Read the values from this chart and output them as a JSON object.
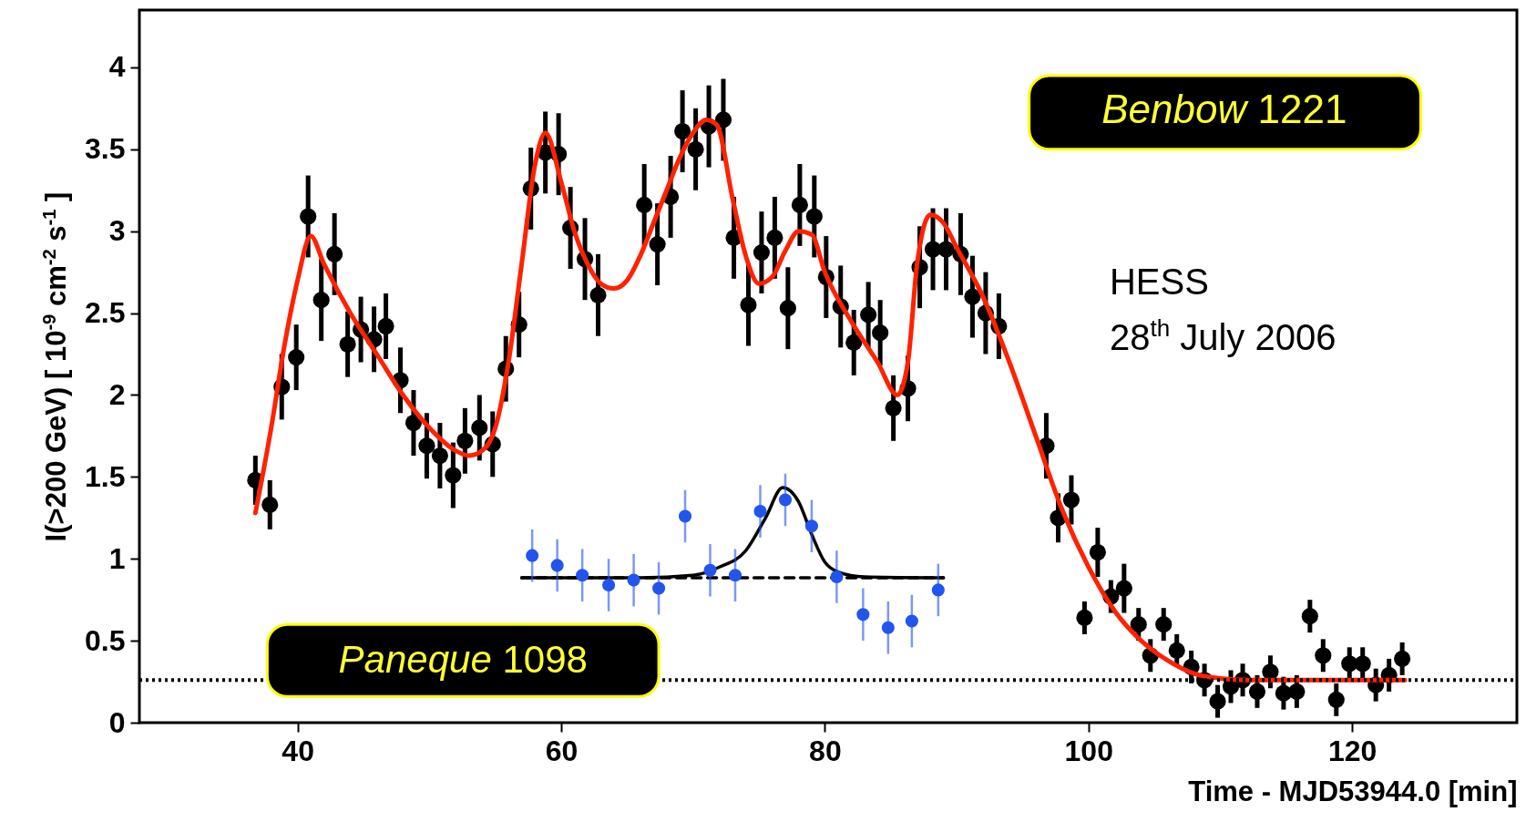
{
  "chart_data": {
    "type": "scatter",
    "xlabel": "Time - MJD53944.0 [min]",
    "ylabel": "I(>200 GeV) [ 10$^{-9}$ cm$^{-2}$ s$^{-1}$ ]",
    "xlim": [
      28,
      132.5
    ],
    "xticks": [
      40,
      60,
      80,
      100,
      120
    ],
    "ylim": [
      0,
      4.35
    ],
    "yticks": [
      0,
      0.5,
      1,
      1.5,
      2,
      2.5,
      3,
      3.5,
      4
    ],
    "grid": false,
    "series": [
      {
        "color": "#000000",
        "marker": "circle",
        "x": [
          36.8,
          37.9,
          38.8,
          39.9,
          40.8,
          41.8,
          42.8,
          43.8,
          44.8,
          45.8,
          46.7,
          47.8,
          48.8,
          49.8,
          50.8,
          51.8,
          52.7,
          53.8,
          54.8,
          55.8,
          56.8,
          57.7,
          58.8,
          59.8,
          60.7,
          61.8,
          62.8,
          66.3,
          67.3,
          68.3,
          69.2,
          70.2,
          71.2,
          72.3,
          73.1,
          74.2,
          75.2,
          76.2,
          77.2,
          78.1,
          79.2,
          80.1,
          81.2,
          82.2,
          83.3,
          84.2,
          85.2,
          86.3,
          87.2,
          88.2,
          89.2,
          90.3,
          91.2,
          92.2,
          93.2,
          96.8,
          97.7,
          98.7,
          99.7,
          100.7,
          101.7,
          102.7,
          103.8,
          104.7,
          105.7,
          106.7,
          107.8,
          108.8,
          109.8,
          110.8,
          111.7,
          112.8,
          113.8,
          114.8,
          115.8,
          116.8,
          117.8,
          118.8,
          119.8,
          120.8,
          121.8,
          122.8,
          123.8
        ],
        "values": [
          1.48,
          1.33,
          2.05,
          2.23,
          3.09,
          2.58,
          2.86,
          2.31,
          2.4,
          2.34,
          2.42,
          2.09,
          1.83,
          1.69,
          1.63,
          1.51,
          1.72,
          1.8,
          1.7,
          2.16,
          2.43,
          3.26,
          3.48,
          3.47,
          3.02,
          2.83,
          2.61,
          3.16,
          2.92,
          3.21,
          3.61,
          3.5,
          3.64,
          3.68,
          2.96,
          2.55,
          2.87,
          2.96,
          2.53,
          3.16,
          3.09,
          2.72,
          2.54,
          2.32,
          2.49,
          2.38,
          1.92,
          2.04,
          2.78,
          2.89,
          2.89,
          2.86,
          2.6,
          2.5,
          2.42,
          1.69,
          1.25,
          1.36,
          0.64,
          1.04,
          0.77,
          0.82,
          0.6,
          0.41,
          0.6,
          0.44,
          0.34,
          0.26,
          0.13,
          0.22,
          0.26,
          0.19,
          0.31,
          0.18,
          0.19,
          0.65,
          0.41,
          0.14,
          0.36,
          0.36,
          0.23,
          0.29,
          0.39
        ],
        "errors": [
          0.15,
          0.15,
          0.2,
          0.2,
          0.25,
          0.25,
          0.25,
          0.2,
          0.2,
          0.2,
          0.2,
          0.2,
          0.2,
          0.2,
          0.2,
          0.2,
          0.2,
          0.2,
          0.2,
          0.2,
          0.2,
          0.25,
          0.25,
          0.25,
          0.25,
          0.25,
          0.25,
          0.25,
          0.25,
          0.25,
          0.25,
          0.25,
          0.25,
          0.25,
          0.25,
          0.25,
          0.25,
          0.25,
          0.25,
          0.25,
          0.25,
          0.25,
          0.25,
          0.2,
          0.2,
          0.2,
          0.2,
          0.2,
          0.25,
          0.25,
          0.25,
          0.25,
          0.25,
          0.25,
          0.2,
          0.2,
          0.15,
          0.15,
          0.1,
          0.15,
          0.1,
          0.15,
          0.1,
          0.1,
          0.1,
          0.1,
          0.1,
          0.1,
          0.1,
          0.1,
          0.1,
          0.1,
          0.1,
          0.1,
          0.1,
          0.1,
          0.1,
          0.1,
          0.1,
          0.1,
          0.1,
          0.1,
          0.1
        ]
      },
      {
        "type": "line",
        "color": "#ff2200",
        "x": [
          36.8,
          38,
          39,
          40,
          41,
          42,
          44,
          46,
          48,
          50,
          52,
          53,
          54,
          55,
          56,
          57,
          58,
          58.8,
          60,
          61,
          62,
          63,
          64,
          65,
          66,
          67,
          68,
          69,
          70,
          71,
          71.8,
          73,
          74,
          75,
          76,
          77,
          78,
          79,
          80,
          82,
          84,
          85.5,
          86.3,
          87,
          88,
          89,
          90,
          92,
          94,
          96,
          98,
          100,
          102,
          104,
          106,
          108,
          110,
          112,
          124
        ],
        "values": [
          1.28,
          1.8,
          2.3,
          2.7,
          2.97,
          2.8,
          2.5,
          2.25,
          2.0,
          1.8,
          1.66,
          1.63,
          1.66,
          1.8,
          2.2,
          2.8,
          3.4,
          3.6,
          3.3,
          3.0,
          2.8,
          2.68,
          2.65,
          2.7,
          2.85,
          3.05,
          3.25,
          3.45,
          3.6,
          3.68,
          3.65,
          3.2,
          2.85,
          2.68,
          2.72,
          2.88,
          3.0,
          2.98,
          2.75,
          2.45,
          2.2,
          2.0,
          2.2,
          2.8,
          3.1,
          3.05,
          2.9,
          2.6,
          2.2,
          1.75,
          1.3,
          0.95,
          0.68,
          0.5,
          0.38,
          0.3,
          0.27,
          0.26,
          0.26
        ]
      },
      {
        "type": "line",
        "color": "#000000",
        "line_style": "dashed",
        "x": [
          57,
          89
        ],
        "values": [
          0.884,
          0.884
        ]
      },
      {
        "type": "line",
        "color": "#000000",
        "x": [
          57,
          66,
          70,
          72,
          74,
          75.5,
          76.8,
          78,
          79,
          80,
          81,
          83,
          89
        ],
        "values": [
          0.884,
          0.885,
          0.9,
          0.95,
          1.05,
          1.25,
          1.435,
          1.35,
          1.15,
          0.98,
          0.92,
          0.89,
          0.884
        ]
      },
      {
        "type": "scatter",
        "color": "#2255ee",
        "marker": "circle",
        "x": [
          57.8,
          59.7,
          61.6,
          63.6,
          65.5,
          67.4,
          69.4,
          71.3,
          73.2,
          75.1,
          77.0,
          79.0,
          80.9,
          82.9,
          84.8,
          86.6,
          88.6
        ],
        "values": [
          1.02,
          0.96,
          0.9,
          0.84,
          0.87,
          0.82,
          1.26,
          0.93,
          0.9,
          1.29,
          1.36,
          1.2,
          0.89,
          0.66,
          0.58,
          0.62,
          0.81
        ],
        "errors": [
          0.16,
          0.16,
          0.16,
          0.16,
          0.16,
          0.16,
          0.16,
          0.16,
          0.16,
          0.16,
          0.16,
          0.16,
          0.16,
          0.16,
          0.16,
          0.16,
          0.16
        ]
      }
    ],
    "ref_lines": [
      {
        "axis": "y",
        "value": 0.26,
        "color": "#000000",
        "line_style": "dotted"
      }
    ],
    "annotations": [
      "Benbow 1221",
      "Paneque 1098",
      "HESS",
      "28$^{th}$ July 2006"
    ]
  }
}
